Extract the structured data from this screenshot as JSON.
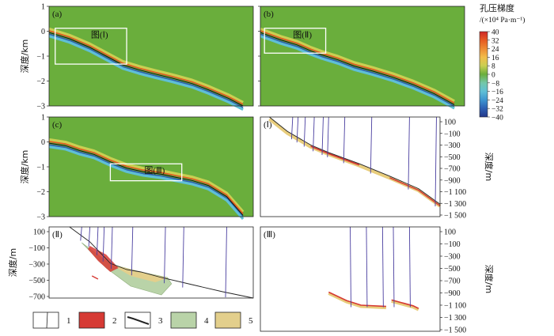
{
  "chart_data": {
    "type": "heatmap",
    "colorbar": {
      "title": "孔压梯度",
      "unit": "/(×10⁴ Pa·m⁻¹)",
      "ticks": [
        "40",
        "32",
        "24",
        "16",
        "8",
        "0",
        "−8",
        "−16",
        "−24",
        "−32",
        "−40"
      ],
      "colors": [
        "#cf2727",
        "#e65a22",
        "#ed8b34",
        "#f2bd4a",
        "#c9cf52",
        "#6aae3c",
        "#73c7a8",
        "#5fbfd6",
        "#3d95d0",
        "#2d5fb2",
        "#233789"
      ],
      "background_value": "0"
    },
    "panels": [
      {
        "label": "(a)",
        "ylabel": "深度/km",
        "yticks": [
          "1",
          "0",
          "−1",
          "−2",
          "−3"
        ],
        "yrange_km": [
          -3,
          1
        ],
        "profile_km": [
          [
            0,
            -0.05
          ],
          [
            0.04,
            -0.15
          ],
          [
            0.1,
            -0.3
          ],
          [
            0.2,
            -0.65
          ],
          [
            0.28,
            -1.0
          ],
          [
            0.36,
            -1.35
          ],
          [
            0.44,
            -1.55
          ],
          [
            0.52,
            -1.72
          ],
          [
            0.6,
            -1.88
          ],
          [
            0.7,
            -2.1
          ],
          [
            0.78,
            -2.35
          ],
          [
            0.88,
            -2.7
          ],
          [
            0.95,
            -3.0
          ]
        ],
        "inset": {
          "label": "图(Ⅰ)"
        }
      },
      {
        "label": "(b)",
        "yrange_km": [
          -3,
          1
        ],
        "profile_km": [
          [
            0,
            -0.05
          ],
          [
            0.05,
            -0.2
          ],
          [
            0.1,
            -0.35
          ],
          [
            0.18,
            -0.55
          ],
          [
            0.25,
            -0.8
          ],
          [
            0.3,
            -0.95
          ],
          [
            0.38,
            -1.15
          ],
          [
            0.46,
            -1.4
          ],
          [
            0.55,
            -1.6
          ],
          [
            0.65,
            -1.85
          ],
          [
            0.75,
            -2.15
          ],
          [
            0.85,
            -2.5
          ],
          [
            0.95,
            -2.95
          ]
        ],
        "inset": {
          "label": "图(Ⅱ)"
        }
      },
      {
        "label": "(c)",
        "ylabel": "深度/km",
        "yticks": [
          "1",
          "0",
          "−1",
          "−2",
          "−3"
        ],
        "yrange_km": [
          -3,
          1
        ],
        "profile_km": [
          [
            0,
            -0.05
          ],
          [
            0.08,
            -0.15
          ],
          [
            0.15,
            -0.35
          ],
          [
            0.22,
            -0.5
          ],
          [
            0.3,
            -0.8
          ],
          [
            0.38,
            -1.05
          ],
          [
            0.46,
            -1.2
          ],
          [
            0.55,
            -1.3
          ],
          [
            0.62,
            -1.42
          ],
          [
            0.7,
            -1.55
          ],
          [
            0.78,
            -1.75
          ],
          [
            0.87,
            -2.2
          ],
          [
            0.95,
            -2.95
          ]
        ],
        "inset": {
          "label": "图(Ⅲ)"
        }
      }
    ],
    "zoom_panels": [
      {
        "label": "(Ⅰ)",
        "ylabel": "深度/m",
        "yticks": [
          "100",
          "−100",
          "−300",
          "−500",
          "−700",
          "−900",
          "−1 100",
          "−1 300",
          "−1 500"
        ],
        "yrange_m": [
          100,
          -1500
        ],
        "surface_m": [
          [
            0.05,
            100
          ],
          [
            0.15,
            -130
          ],
          [
            0.28,
            -350
          ],
          [
            0.38,
            -470
          ],
          [
            0.55,
            -650
          ],
          [
            0.72,
            -850
          ],
          [
            0.88,
            -1050
          ],
          [
            1.0,
            -1300
          ]
        ],
        "wells_x": [
          0.18,
          0.21,
          0.25,
          0.3,
          0.35,
          0.38,
          0.47,
          0.62,
          0.83,
          0.98
        ]
      },
      {
        "label": "(Ⅱ)",
        "ylabel": "深度/m",
        "yticks": [
          "100",
          "−100",
          "−300",
          "−500",
          "−700"
        ],
        "yrange_m": [
          100,
          -800
        ],
        "surface_m": [
          [
            0.1,
            100
          ],
          [
            0.2,
            -90
          ],
          [
            0.3,
            -360
          ],
          [
            0.38,
            -440
          ],
          [
            0.45,
            -470
          ],
          [
            0.55,
            -540
          ],
          [
            0.7,
            -630
          ],
          [
            0.85,
            -720
          ],
          [
            1.0,
            -800
          ]
        ],
        "wells_x": [
          0.16,
          0.2,
          0.24,
          0.27,
          0.31,
          0.41,
          0.57,
          0.66,
          0.87
        ]
      },
      {
        "label": "(Ⅲ)",
        "ylabel": "深度/m",
        "yticks": [
          "100",
          "−100",
          "−300",
          "−500",
          "−700",
          "−900",
          "−1 100",
          "−1 300",
          "−1 500"
        ],
        "yrange_m": [
          100,
          -1500
        ],
        "segments_m": [
          [
            [
              0.38,
              -900
            ],
            [
              0.48,
              -1030
            ],
            [
              0.56,
              -1100
            ],
            [
              0.7,
              -1120
            ]
          ],
          [
            [
              0.73,
              -1020
            ],
            [
              0.85,
              -1110
            ],
            [
              0.88,
              -1150
            ]
          ]
        ],
        "wells_x": [
          0.5,
          0.59,
          0.68,
          0.74,
          0.83
        ]
      }
    ],
    "legend": [
      "1",
      "2",
      "3",
      "4",
      "5"
    ]
  }
}
